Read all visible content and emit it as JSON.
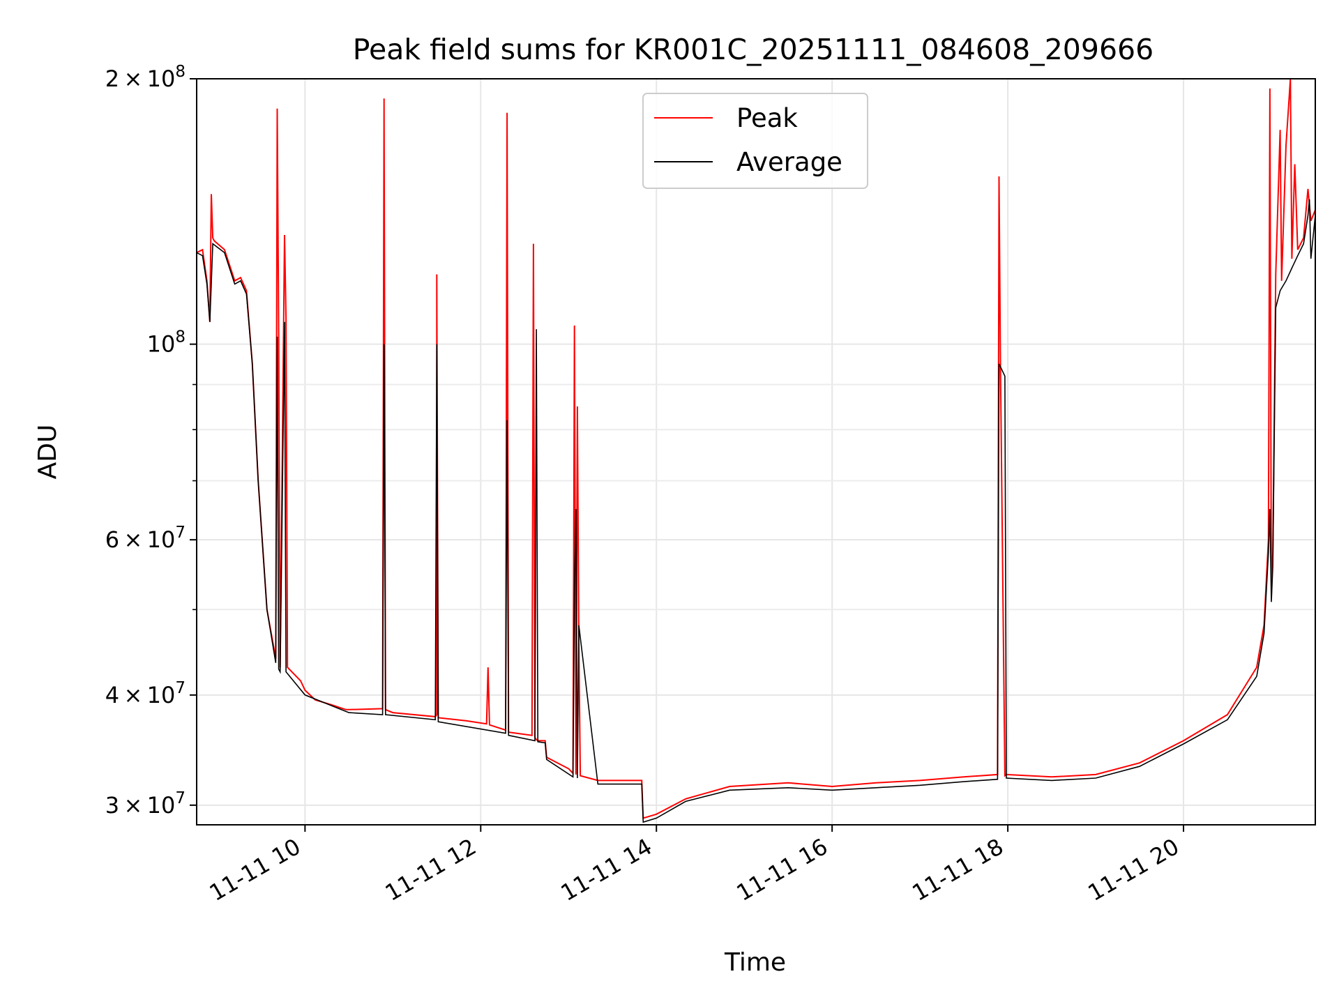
{
  "chart_data": {
    "type": "line",
    "title": "Peak field sums for KR001C_20251111_084608_209666",
    "xlabel": "Time",
    "ylabel": "ADU",
    "yscale": "log",
    "ylim": [
      28500000,
      200000000
    ],
    "xlim": [
      "2025-11-11 08:46",
      "2025-11-11 21:30"
    ],
    "grid": true,
    "legend_position": "upper-center",
    "x_ticks": [
      {
        "x": "2025-11-11 10:00",
        "label": "11-11 10"
      },
      {
        "x": "2025-11-11 12:00",
        "label": "11-11 12"
      },
      {
        "x": "2025-11-11 14:00",
        "label": "11-11 14"
      },
      {
        "x": "2025-11-11 16:00",
        "label": "11-11 16"
      },
      {
        "x": "2025-11-11 18:00",
        "label": "11-11 18"
      },
      {
        "x": "2025-11-11 20:00",
        "label": "11-11 20"
      }
    ],
    "y_ticks": [
      {
        "value": 30000000,
        "mantissa": "3",
        "exp": "7"
      },
      {
        "value": 40000000,
        "mantissa": "4",
        "exp": "7"
      },
      {
        "value": 60000000,
        "mantissa": "6",
        "exp": "7"
      },
      {
        "value": 100000000,
        "mantissa": "",
        "exp": "8"
      },
      {
        "value": 200000000,
        "mantissa": "2",
        "exp": "8"
      }
    ],
    "y_minor_ticks": [
      50000000,
      70000000,
      80000000,
      90000000
    ],
    "tick_base": "10",
    "tick_times": "×",
    "series": [
      {
        "name": "Peak",
        "color": "#ff0000",
        "x": [
          "2025-11-11 08:46",
          "2025-11-11 08:50",
          "2025-11-11 08:53",
          "2025-11-11 08:55",
          "2025-11-11 08:56",
          "2025-11-11 08:57",
          "2025-11-11 08:58",
          "2025-11-11 09:05",
          "2025-11-11 09:12",
          "2025-11-11 09:16",
          "2025-11-11 09:20",
          "2025-11-11 09:24",
          "2025-11-11 09:28",
          "2025-11-11 09:34",
          "2025-11-11 09:40",
          "2025-11-11 09:48",
          "2025-11-11 09:57",
          "2025-11-11 10:07",
          "2025-11-11 10:18",
          "2025-11-11 10:28",
          "2025-11-11 09:41",
          "2025-11-11 09:42",
          "2025-11-11 09:43",
          "2025-11-11 09:46",
          "2025-11-11 09:47",
          "2025-11-11 09:48",
          "2025-11-11 10:00",
          "2025-11-11 10:30",
          "2025-11-11 10:53",
          "2025-11-11 10:54",
          "2025-11-11 10:55",
          "2025-11-11 11:00",
          "2025-11-11 11:30",
          "2025-11-11 11:29",
          "2025-11-11 11:30",
          "2025-11-11 11:31",
          "2025-11-11 11:50",
          "2025-11-11 12:04",
          "2025-11-11 12:05",
          "2025-11-11 12:06",
          "2025-11-11 12:17",
          "2025-11-11 12:18",
          "2025-11-11 12:19",
          "2025-11-11 12:35",
          "2025-11-11 12:36",
          "2025-11-11 12:37",
          "2025-11-11 12:38",
          "2025-11-11 12:39",
          "2025-11-11 12:44",
          "2025-11-11 12:45",
          "2025-11-11 13:00",
          "2025-11-11 13:03",
          "2025-11-11 13:04",
          "2025-11-11 13:05",
          "2025-11-11 13:06",
          "2025-11-11 13:07",
          "2025-11-11 13:08",
          "2025-11-11 13:20",
          "2025-11-11 13:50",
          "2025-11-11 13:51",
          "2025-11-11 14:00",
          "2025-11-11 14:20",
          "2025-11-11 14:50",
          "2025-11-11 15:30",
          "2025-11-11 16:00",
          "2025-11-11 16:30",
          "2025-11-11 17:00",
          "2025-11-11 17:30",
          "2025-11-11 17:53",
          "2025-11-11 17:54",
          "2025-11-11 17:55",
          "2025-11-11 17:58",
          "2025-11-11 17:59",
          "2025-11-11 18:30",
          "2025-11-11 19:00",
          "2025-11-11 19:30",
          "2025-11-11 20:00",
          "2025-11-11 20:30",
          "2025-11-11 20:50",
          "2025-11-11 20:55",
          "2025-11-11 20:58",
          "2025-11-11 20:59",
          "2025-11-11 21:00",
          "2025-11-11 21:01",
          "2025-11-11 21:03",
          "2025-11-11 21:06",
          "2025-11-11 21:07",
          "2025-11-11 21:10",
          "2025-11-11 21:13",
          "2025-11-11 21:14",
          "2025-11-11 21:16",
          "2025-11-11 21:18",
          "2025-11-11 21:22",
          "2025-11-11 21:25",
          "2025-11-11 21:27",
          "2025-11-11 21:30"
        ],
        "values": [
          127000000,
          128000000,
          118000000,
          106000000,
          148000000,
          132000000,
          131000000,
          128000000,
          118000000,
          119000000,
          115000000,
          95000000,
          70000000,
          50000000,
          44000000,
          43000000,
          41500000,
          39500000,
          39000000,
          38500000,
          185000000,
          103000000,
          43000000,
          133000000,
          107000000,
          43000000,
          40500000,
          38500000,
          38600000,
          190000000,
          38500000,
          38200000,
          38000000,
          37800000,
          120000000,
          37700000,
          37400000,
          37100000,
          43000000,
          37000000,
          36500000,
          183000000,
          36300000,
          36000000,
          130000000,
          35800000,
          35600000,
          35500000,
          35500000,
          34000000,
          33000000,
          32600000,
          105000000,
          32500000,
          85000000,
          46000000,
          32400000,
          32000000,
          32000000,
          29000000,
          29300000,
          30500000,
          31500000,
          31800000,
          31500000,
          31800000,
          32000000,
          32300000,
          32500000,
          155000000,
          94000000,
          32400000,
          32500000,
          32300000,
          32500000,
          33500000,
          35500000,
          38000000,
          43000000,
          48000000,
          60000000,
          195000000,
          52000000,
          58000000,
          120000000,
          175000000,
          118000000,
          168000000,
          200000000,
          125000000,
          160000000,
          128000000,
          132000000,
          150000000,
          138000000,
          142000000
        ]
      },
      {
        "name": "Average",
        "color": "#000000",
        "x": [
          "2025-11-11 08:46",
          "2025-11-11 08:50",
          "2025-11-11 08:53",
          "2025-11-11 08:55",
          "2025-11-11 08:57",
          "2025-11-11 09:05",
          "2025-11-11 09:12",
          "2025-11-11 09:16",
          "2025-11-11 09:20",
          "2025-11-11 09:24",
          "2025-11-11 09:28",
          "2025-11-11 09:34",
          "2025-11-11 09:40",
          "2025-11-11 09:41",
          "2025-11-11 09:42",
          "2025-11-11 09:43",
          "2025-11-11 09:46",
          "2025-11-11 09:47",
          "2025-11-11 09:48",
          "2025-11-11 10:00",
          "2025-11-11 10:30",
          "2025-11-11 10:53",
          "2025-11-11 10:54",
          "2025-11-11 10:55",
          "2025-11-11 11:29",
          "2025-11-11 11:30",
          "2025-11-11 11:31",
          "2025-11-11 12:17",
          "2025-11-11 12:18",
          "2025-11-11 12:19",
          "2025-11-11 12:37",
          "2025-11-11 12:38",
          "2025-11-11 12:39",
          "2025-11-11 12:44",
          "2025-11-11 12:45",
          "2025-11-11 13:03",
          "2025-11-11 13:04",
          "2025-11-11 13:05",
          "2025-11-11 13:06",
          "2025-11-11 13:07",
          "2025-11-11 13:20",
          "2025-11-11 13:50",
          "2025-11-11 13:51",
          "2025-11-11 14:00",
          "2025-11-11 14:20",
          "2025-11-11 14:50",
          "2025-11-11 15:30",
          "2025-11-11 16:00",
          "2025-11-11 16:30",
          "2025-11-11 17:00",
          "2025-11-11 17:30",
          "2025-11-11 17:53",
          "2025-11-11 17:54",
          "2025-11-11 17:58",
          "2025-11-11 17:59",
          "2025-11-11 18:30",
          "2025-11-11 19:00",
          "2025-11-11 19:30",
          "2025-11-11 20:00",
          "2025-11-11 20:30",
          "2025-11-11 20:50",
          "2025-11-11 20:55",
          "2025-11-11 20:58",
          "2025-11-11 20:59",
          "2025-11-11 21:00",
          "2025-11-11 21:01",
          "2025-11-11 21:03",
          "2025-11-11 21:06",
          "2025-11-11 21:10",
          "2025-11-11 21:14",
          "2025-11-11 21:18",
          "2025-11-11 21:22",
          "2025-11-11 21:25",
          "2025-11-11 21:26",
          "2025-11-11 21:27",
          "2025-11-11 21:30"
        ],
        "values": [
          127000000,
          126000000,
          117000000,
          106000000,
          130000000,
          127000000,
          117000000,
          118000000,
          114000000,
          95000000,
          70000000,
          50000000,
          43500000,
          102000000,
          42800000,
          42500000,
          106000000,
          42500000,
          42300000,
          40000000,
          38200000,
          38000000,
          100000000,
          38000000,
          37500000,
          100000000,
          37300000,
          36200000,
          82000000,
          36000000,
          35500000,
          104000000,
          35400000,
          35300000,
          33800000,
          32300000,
          53000000,
          65000000,
          32200000,
          48000000,
          31700000,
          31700000,
          28700000,
          29000000,
          30300000,
          31200000,
          31400000,
          31200000,
          31400000,
          31600000,
          31900000,
          32100000,
          95000000,
          92000000,
          32200000,
          32000000,
          32200000,
          33200000,
          35200000,
          37500000,
          42000000,
          47000000,
          58000000,
          65000000,
          51000000,
          56000000,
          110000000,
          115000000,
          118000000,
          122000000,
          126000000,
          130000000,
          140000000,
          146000000,
          125000000,
          140000000
        ]
      }
    ]
  }
}
